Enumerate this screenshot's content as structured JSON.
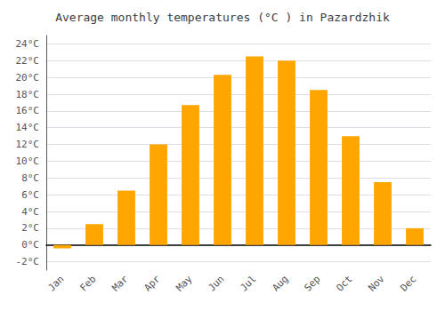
{
  "chart_data": {
    "type": "bar",
    "title": "Average monthly temperatures (°C ) in Pazardzhik",
    "categories": [
      "Jan",
      "Feb",
      "Mar",
      "Apr",
      "May",
      "Jun",
      "Jul",
      "Aug",
      "Sep",
      "Oct",
      "Nov",
      "Dec"
    ],
    "values": [
      -0.4,
      2.5,
      6.5,
      12.0,
      16.7,
      20.3,
      22.5,
      22.0,
      18.5,
      13.0,
      7.5,
      2.0
    ],
    "color": "#FFA500",
    "ylim": [
      -3,
      25
    ],
    "yticks": [
      {
        "value": -2,
        "label": "-2°C"
      },
      {
        "value": 0,
        "label": "0°C"
      },
      {
        "value": 2,
        "label": "2°C"
      },
      {
        "value": 4,
        "label": "4°C"
      },
      {
        "value": 6,
        "label": "6°C"
      },
      {
        "value": 8,
        "label": "8°C"
      },
      {
        "value": 10,
        "label": "10°C"
      },
      {
        "value": 12,
        "label": "12°C"
      },
      {
        "value": 14,
        "label": "14°C"
      },
      {
        "value": 16,
        "label": "16°C"
      },
      {
        "value": 18,
        "label": "18°C"
      },
      {
        "value": 20,
        "label": "20°C"
      },
      {
        "value": 22,
        "label": "22°C"
      },
      {
        "value": 24,
        "label": "24°C"
      }
    ],
    "grid": true
  }
}
